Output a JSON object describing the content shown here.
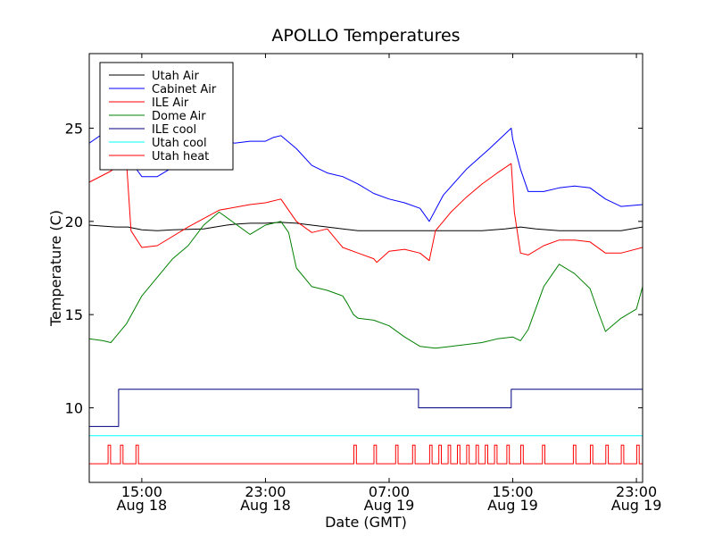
{
  "chart_data": {
    "type": "line",
    "title": "APOLLO Temperatures",
    "xlabel": "Date (GMT)",
    "ylabel": "Temperature (C)",
    "xlim": [
      11.6,
      47.4
    ],
    "ylim": [
      6.0,
      29.0
    ],
    "grid": false,
    "legend_position": "top-left",
    "x_unit": "hours since Aug 18 00:00 GMT",
    "x_ticks": [
      {
        "x": 15,
        "time": "15:00",
        "date": "Aug 18"
      },
      {
        "x": 23,
        "time": "23:00",
        "date": "Aug 18"
      },
      {
        "x": 31,
        "time": "07:00",
        "date": "Aug 19"
      },
      {
        "x": 39,
        "time": "15:00",
        "date": "Aug 19"
      },
      {
        "x": 47,
        "time": "23:00",
        "date": "Aug 19"
      }
    ],
    "y_ticks": [
      10,
      15,
      20,
      25
    ],
    "series": [
      {
        "name": "Utah Air",
        "color": "#000000",
        "x": [
          11.6,
          13.3,
          14.1,
          15.0,
          16.0,
          17.0,
          19.0,
          20.5,
          21.0,
          22.0,
          23.0,
          24.0,
          25.0,
          26.0,
          27.0,
          28.0,
          29.0,
          31.0,
          33.0,
          35.0,
          37.0,
          38.5,
          39.5,
          40.5,
          42.0,
          44.0,
          46.0,
          47.4
        ],
        "values": [
          19.8,
          19.7,
          19.7,
          19.55,
          19.5,
          19.55,
          19.6,
          19.8,
          19.85,
          19.9,
          19.9,
          19.95,
          19.9,
          19.8,
          19.7,
          19.6,
          19.5,
          19.5,
          19.5,
          19.5,
          19.5,
          19.6,
          19.7,
          19.6,
          19.5,
          19.5,
          19.5,
          19.7
        ]
      },
      {
        "name": "Cabinet Air",
        "color": "#0000ff",
        "x": [
          11.6,
          13.0,
          14.0,
          14.3,
          15.0,
          16.0,
          17.0,
          18.0,
          19.0,
          20.0,
          21.0,
          22.0,
          23.0,
          23.5,
          24.0,
          25.0,
          26.0,
          27.0,
          28.0,
          29.0,
          30.0,
          31.0,
          32.0,
          33.0,
          33.6,
          34.5,
          36.0,
          37.5,
          38.9,
          39.0,
          39.5,
          40.0,
          41.0,
          42.0,
          43.0,
          44.0,
          45.0,
          46.0,
          47.4
        ],
        "values": [
          24.2,
          25.0,
          25.6,
          23.2,
          22.4,
          22.4,
          22.9,
          23.7,
          24.3,
          24.4,
          24.2,
          24.3,
          24.3,
          24.5,
          24.6,
          23.9,
          23.0,
          22.6,
          22.4,
          22.0,
          21.5,
          21.2,
          21.0,
          20.7,
          20.0,
          21.4,
          22.8,
          23.9,
          25.0,
          24.4,
          22.8,
          21.6,
          21.6,
          21.8,
          21.9,
          21.8,
          21.2,
          20.8,
          20.9
        ]
      },
      {
        "name": "ILE Air",
        "color": "#ff0000",
        "x": [
          11.6,
          13.0,
          14.0,
          14.3,
          15.0,
          16.0,
          18.0,
          20.0,
          22.0,
          23.0,
          24.0,
          25.0,
          26.0,
          27.0,
          28.0,
          29.0,
          30.0,
          30.2,
          31.0,
          32.0,
          33.0,
          33.6,
          34.0,
          35.0,
          36.0,
          37.0,
          38.0,
          38.9,
          39.1,
          39.5,
          40.0,
          41.0,
          42.0,
          43.0,
          44.0,
          45.0,
          46.0,
          47.4
        ],
        "values": [
          22.1,
          22.7,
          23.3,
          19.5,
          18.6,
          18.7,
          19.7,
          20.6,
          20.9,
          21.0,
          21.2,
          20.0,
          19.4,
          19.6,
          18.6,
          18.3,
          18.0,
          17.8,
          18.4,
          18.5,
          18.3,
          17.9,
          19.5,
          20.5,
          21.3,
          22.0,
          22.6,
          23.1,
          20.5,
          18.3,
          18.2,
          18.7,
          19.0,
          19.0,
          18.9,
          18.3,
          18.3,
          18.6
        ]
      },
      {
        "name": "Dome Air",
        "color": "#008000",
        "x": [
          11.6,
          12.5,
          13.0,
          14.0,
          15.0,
          16.0,
          17.0,
          18.0,
          19.0,
          20.0,
          21.0,
          22.0,
          23.0,
          24.0,
          24.5,
          25.0,
          26.0,
          27.0,
          28.0,
          28.3,
          28.7,
          29.0,
          30.0,
          31.0,
          32.0,
          33.0,
          34.0,
          35.0,
          36.0,
          37.0,
          38.0,
          39.0,
          39.5,
          40.0,
          41.0,
          42.0,
          43.0,
          44.0,
          44.5,
          45.0,
          46.0,
          47.0,
          47.4
        ],
        "values": [
          13.7,
          13.6,
          13.5,
          14.5,
          16.0,
          17.0,
          18.0,
          18.7,
          19.8,
          20.5,
          19.9,
          19.3,
          19.8,
          20.0,
          19.4,
          17.5,
          16.5,
          16.3,
          16.0,
          15.6,
          15.0,
          14.8,
          14.7,
          14.4,
          13.8,
          13.3,
          13.2,
          13.3,
          13.4,
          13.5,
          13.7,
          13.8,
          13.6,
          14.2,
          16.5,
          17.7,
          17.2,
          16.4,
          15.2,
          14.1,
          14.8,
          15.3,
          16.5
        ]
      },
      {
        "name": "ILE cool",
        "color": "#000080",
        "x": [
          11.6,
          13.5,
          13.5,
          32.9,
          32.9,
          38.9,
          38.9,
          47.4
        ],
        "values": [
          9.0,
          9.0,
          11.0,
          11.0,
          10.0,
          10.0,
          11.0,
          11.0
        ]
      },
      {
        "name": "Utah cool",
        "color": "#00ffff",
        "x": [
          11.6,
          47.4
        ],
        "values": [
          8.5,
          8.5
        ]
      },
      {
        "name": "Utah heat",
        "color": "#ff0000",
        "baseline": 7.0,
        "pulse_height": 8.0,
        "pulses": [
          12.9,
          13.7,
          14.7,
          28.8,
          30.1,
          31.5,
          32.6,
          33.7,
          34.3,
          34.9,
          35.5,
          36.1,
          36.7,
          37.3,
          37.9,
          38.7,
          39.6,
          41.0,
          43.0,
          44.1,
          45.1,
          46.1,
          47.1
        ]
      }
    ]
  }
}
